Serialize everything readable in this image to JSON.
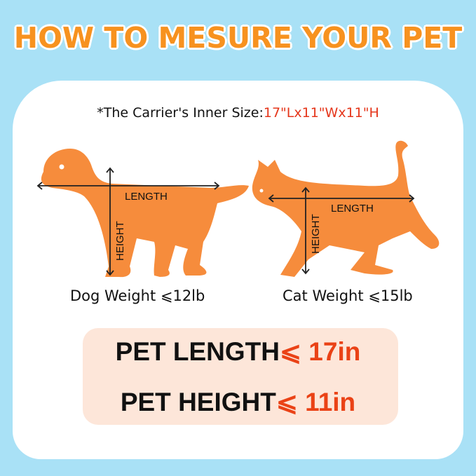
{
  "title": "HOW TO MESURE YOUR PET",
  "carrier": {
    "label": "*The Carrier's Inner Size:",
    "size": "17\"Lx11\"Wx11\"H"
  },
  "dog": {
    "length_label": "LENGTH",
    "height_label": "HEIGHT",
    "weight": "Dog Weight ⩽12lb"
  },
  "cat": {
    "length_label": "LENGTH",
    "height_label": "HEIGHT",
    "weight": "Cat Weight ⩽15lb"
  },
  "limits": [
    {
      "label": "PET LENGTH",
      "symbol": "⩽",
      "value": "17in"
    },
    {
      "label": "PET HEIGHT",
      "symbol": "⩽",
      "value": "11in"
    }
  ],
  "colors": {
    "background": "#a9e1f6",
    "title": "#f7921f",
    "silhouette": "#f68c3c",
    "highlight": "#ea4216",
    "box": "#fde6d9"
  }
}
